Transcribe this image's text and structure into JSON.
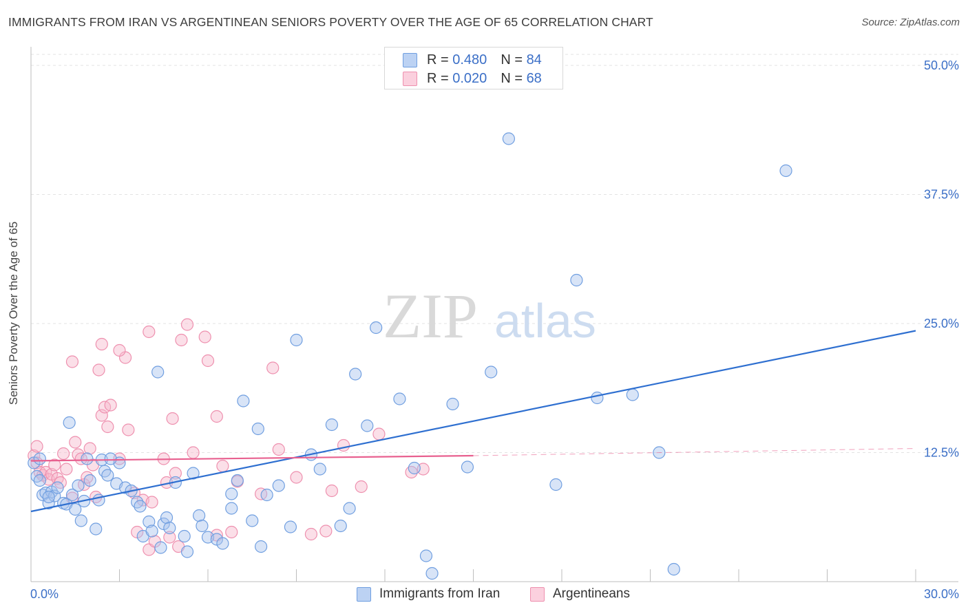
{
  "title": "IMMIGRANTS FROM IRAN VS ARGENTINEAN SENIORS POVERTY OVER THE AGE OF 65 CORRELATION CHART",
  "source": "Source: ZipAtlas.com",
  "watermark": {
    "zip": "ZIP",
    "atlas": "atlas"
  },
  "legend": {
    "rows": [
      {
        "r_label": "R =",
        "r_value": "0.480",
        "n_label": "N =",
        "n_value": "84"
      },
      {
        "r_label": "R =",
        "r_value": "0.020",
        "n_label": "N =",
        "n_value": "68"
      }
    ]
  },
  "colors": {
    "iran_fill": "#a9c4ee",
    "iran_stroke": "#6f9ee0",
    "iran_line": "#2e6fd0",
    "arg_fill": "#f6b9cd",
    "arg_stroke": "#ee8fae",
    "arg_line": "#e8608f",
    "grid": "#e3e3e3",
    "axis_text": "#3b6fc7"
  },
  "chart_data": {
    "type": "scatter",
    "title": "IMMIGRANTS FROM IRAN VS ARGENTINEAN SENIORS POVERTY OVER THE AGE OF 65 CORRELATION CHART",
    "xlabel": "",
    "ylabel": "Seniors Poverty Over the Age of 65",
    "xlim": [
      0,
      30
    ],
    "ylim": [
      0,
      50
    ],
    "x_tick_labels": [
      "0.0%",
      "30.0%"
    ],
    "y_tick_labels": [
      "12.5%",
      "25.0%",
      "37.5%",
      "50.0%"
    ],
    "y_ticks": [
      12.5,
      25.0,
      37.5,
      50.0
    ],
    "grid": true,
    "legend_position": "top-center",
    "series": [
      {
        "name": "Immigrants from Iran",
        "R": 0.48,
        "N": 84,
        "trend": {
          "x": [
            0,
            30
          ],
          "y": [
            6.8,
            24.3
          ]
        },
        "points": [
          [
            0.1,
            11.5
          ],
          [
            0.2,
            10.2
          ],
          [
            0.3,
            9.8
          ],
          [
            0.4,
            8.4
          ],
          [
            0.5,
            8.6
          ],
          [
            0.6,
            7.6
          ],
          [
            0.7,
            8.7
          ],
          [
            0.8,
            8.3
          ],
          [
            0.9,
            9.1
          ],
          [
            1.1,
            7.6
          ],
          [
            1.2,
            7.5
          ],
          [
            1.4,
            8.4
          ],
          [
            1.5,
            7.0
          ],
          [
            1.6,
            9.3
          ],
          [
            1.7,
            5.9
          ],
          [
            1.8,
            7.8
          ],
          [
            2.0,
            9.8
          ],
          [
            2.2,
            5.1
          ],
          [
            2.3,
            7.9
          ],
          [
            2.4,
            11.8
          ],
          [
            2.5,
            10.7
          ],
          [
            2.6,
            10.3
          ],
          [
            2.9,
            9.5
          ],
          [
            3.0,
            11.5
          ],
          [
            3.2,
            9.1
          ],
          [
            3.4,
            8.8
          ],
          [
            3.6,
            7.7
          ],
          [
            3.8,
            4.4
          ],
          [
            4.0,
            5.8
          ],
          [
            4.1,
            4.9
          ],
          [
            4.4,
            3.3
          ],
          [
            4.5,
            5.6
          ],
          [
            4.6,
            6.2
          ],
          [
            4.7,
            5.2
          ],
          [
            4.9,
            9.6
          ],
          [
            5.2,
            4.4
          ],
          [
            5.3,
            2.9
          ],
          [
            5.5,
            10.5
          ],
          [
            5.7,
            6.4
          ],
          [
            5.8,
            5.4
          ],
          [
            6.0,
            4.3
          ],
          [
            6.3,
            4.1
          ],
          [
            6.5,
            3.7
          ],
          [
            6.8,
            8.5
          ],
          [
            7.0,
            9.8
          ],
          [
            7.2,
            17.5
          ],
          [
            7.5,
            5.9
          ],
          [
            7.8,
            3.4
          ],
          [
            8.0,
            8.4
          ],
          [
            8.4,
            9.3
          ],
          [
            8.8,
            5.3
          ],
          [
            9.0,
            23.4
          ],
          [
            9.5,
            12.3
          ],
          [
            9.8,
            10.9
          ],
          [
            10.2,
            15.2
          ],
          [
            10.5,
            5.4
          ],
          [
            10.8,
            7.1
          ],
          [
            11.0,
            20.1
          ],
          [
            11.4,
            15.1
          ],
          [
            11.7,
            24.6
          ],
          [
            12.5,
            17.7
          ],
          [
            13.0,
            11.0
          ],
          [
            13.4,
            2.5
          ],
          [
            13.6,
            0.8
          ],
          [
            14.3,
            17.2
          ],
          [
            14.8,
            11.1
          ],
          [
            15.6,
            20.3
          ],
          [
            16.2,
            42.9
          ],
          [
            17.8,
            9.4
          ],
          [
            18.5,
            29.2
          ],
          [
            19.2,
            17.8
          ],
          [
            20.4,
            18.1
          ],
          [
            21.3,
            12.5
          ],
          [
            21.8,
            1.2
          ],
          [
            25.6,
            39.8
          ],
          [
            0.3,
            11.9
          ],
          [
            0.6,
            8.2
          ],
          [
            1.3,
            15.4
          ],
          [
            4.3,
            20.3
          ],
          [
            2.7,
            11.9
          ],
          [
            3.7,
            7.3
          ],
          [
            6.8,
            7.1
          ],
          [
            1.9,
            11.9
          ],
          [
            7.7,
            14.8
          ]
        ]
      },
      {
        "name": "Argentineans",
        "R": 0.02,
        "N": 68,
        "trend": {
          "x": [
            0,
            15
          ],
          "y": [
            11.7,
            12.2
          ],
          "dashed_to": [
            30,
            12.9
          ]
        },
        "points": [
          [
            0.1,
            12.2
          ],
          [
            0.2,
            11.5
          ],
          [
            0.3,
            10.6
          ],
          [
            0.4,
            10.3
          ],
          [
            0.5,
            10.6
          ],
          [
            0.6,
            9.9
          ],
          [
            0.7,
            10.4
          ],
          [
            0.8,
            11.3
          ],
          [
            0.9,
            10.0
          ],
          [
            1.0,
            9.6
          ],
          [
            1.1,
            12.4
          ],
          [
            1.2,
            10.9
          ],
          [
            1.4,
            8.1
          ],
          [
            1.5,
            13.5
          ],
          [
            1.6,
            12.3
          ],
          [
            1.7,
            11.9
          ],
          [
            1.8,
            9.4
          ],
          [
            1.9,
            10.1
          ],
          [
            2.0,
            12.9
          ],
          [
            2.1,
            11.3
          ],
          [
            2.2,
            8.2
          ],
          [
            2.4,
            16.1
          ],
          [
            2.5,
            16.9
          ],
          [
            2.6,
            15.0
          ],
          [
            2.7,
            17.1
          ],
          [
            3.0,
            11.9
          ],
          [
            3.2,
            21.7
          ],
          [
            3.3,
            14.7
          ],
          [
            3.5,
            8.6
          ],
          [
            3.6,
            4.8
          ],
          [
            3.8,
            7.9
          ],
          [
            4.0,
            3.1
          ],
          [
            4.1,
            7.7
          ],
          [
            4.2,
            3.9
          ],
          [
            4.5,
            11.9
          ],
          [
            4.6,
            9.6
          ],
          [
            4.7,
            4.3
          ],
          [
            4.9,
            10.5
          ],
          [
            5.0,
            3.4
          ],
          [
            5.3,
            24.9
          ],
          [
            5.5,
            12.5
          ],
          [
            5.9,
            23.7
          ],
          [
            6.3,
            4.5
          ],
          [
            6.5,
            11.2
          ],
          [
            6.8,
            4.8
          ],
          [
            7.0,
            9.7
          ],
          [
            7.8,
            8.5
          ],
          [
            8.4,
            12.8
          ],
          [
            9.0,
            10.1
          ],
          [
            9.5,
            4.6
          ],
          [
            10.0,
            4.9
          ],
          [
            10.2,
            8.8
          ],
          [
            10.6,
            13.2
          ],
          [
            11.2,
            9.2
          ],
          [
            11.8,
            14.3
          ],
          [
            12.9,
            10.6
          ],
          [
            13.3,
            10.9
          ],
          [
            2.4,
            23.0
          ],
          [
            3.0,
            22.4
          ],
          [
            4.0,
            24.2
          ],
          [
            5.1,
            23.4
          ],
          [
            6.0,
            21.4
          ],
          [
            1.4,
            21.3
          ],
          [
            2.3,
            20.5
          ],
          [
            4.8,
            15.8
          ],
          [
            6.3,
            16.0
          ],
          [
            8.2,
            20.7
          ],
          [
            0.2,
            13.1
          ]
        ]
      }
    ]
  }
}
